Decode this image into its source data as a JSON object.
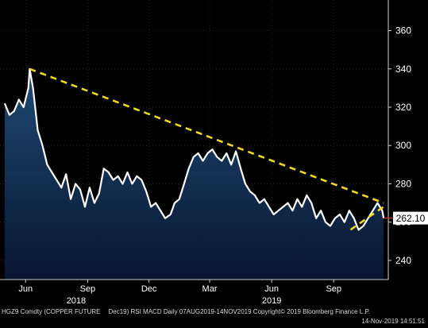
{
  "chart_data": {
    "type": "area",
    "series": [
      {
        "x": [
          "2018-05-01",
          "2018-05-08",
          "2018-05-15",
          "2018-05-22",
          "2018-05-29",
          "2018-06-05",
          "2018-06-07",
          "2018-06-12",
          "2018-06-19",
          "2018-06-26",
          "2018-07-03",
          "2018-07-10",
          "2018-07-17",
          "2018-07-24",
          "2018-07-31",
          "2018-08-07",
          "2018-08-14",
          "2018-08-21",
          "2018-08-28",
          "2018-09-04",
          "2018-09-11",
          "2018-09-18",
          "2018-09-25",
          "2018-10-02",
          "2018-10-09",
          "2018-10-16",
          "2018-10-23",
          "2018-10-30",
          "2018-11-06",
          "2018-11-13",
          "2018-11-20",
          "2018-11-27",
          "2018-12-04",
          "2018-12-11",
          "2018-12-18",
          "2018-12-25",
          "2019-01-02",
          "2019-01-08",
          "2019-01-15",
          "2019-01-22",
          "2019-01-29",
          "2019-02-05",
          "2019-02-12",
          "2019-02-19",
          "2019-02-26",
          "2019-03-05",
          "2019-03-12",
          "2019-03-19",
          "2019-03-26",
          "2019-04-02",
          "2019-04-09",
          "2019-04-16",
          "2019-04-23",
          "2019-04-30",
          "2019-05-07",
          "2019-05-14",
          "2019-05-21",
          "2019-05-28",
          "2019-06-04",
          "2019-06-11",
          "2019-06-18",
          "2019-06-25",
          "2019-07-02",
          "2019-07-09",
          "2019-07-16",
          "2019-07-23",
          "2019-07-30",
          "2019-08-06",
          "2019-08-13",
          "2019-08-20",
          "2019-08-27",
          "2019-09-03",
          "2019-09-10",
          "2019-09-17",
          "2019-09-24",
          "2019-10-01",
          "2019-10-08",
          "2019-10-15",
          "2019-10-22",
          "2019-10-29",
          "2019-11-05",
          "2019-11-12",
          "2019-11-14"
        ],
        "values": [
          322,
          316,
          318,
          324,
          320,
          330,
          340,
          330,
          308,
          300,
          290,
          286,
          282,
          278,
          285,
          272,
          280,
          277,
          268,
          278,
          270,
          275,
          288,
          286,
          282,
          284,
          280,
          286,
          280,
          284,
          282,
          276,
          268,
          270,
          266,
          262,
          264,
          270,
          272,
          280,
          288,
          294,
          296,
          292,
          296,
          298,
          294,
          292,
          296,
          290,
          297,
          288,
          280,
          276,
          274,
          270,
          272,
          268,
          264,
          266,
          268,
          270,
          266,
          272,
          268,
          274,
          270,
          262,
          266,
          260,
          258,
          262,
          264,
          260,
          266,
          262,
          256,
          258,
          262,
          266,
          270,
          266,
          262
        ]
      }
    ],
    "trendlines": [
      {
        "x": [
          "2018-06-07",
          "2019-11-14"
        ],
        "y": [
          340,
          270
        ]
      },
      {
        "x": [
          "2019-09-26",
          "2019-11-14"
        ],
        "y": [
          256,
          268
        ]
      }
    ],
    "last_value": 262.1,
    "last_value_label": "262.10",
    "ylim": [
      230,
      376
    ],
    "yticks": [
      240,
      260,
      280,
      300,
      320,
      340,
      360
    ],
    "ytick_labels": [
      "240",
      "260",
      "280",
      "300",
      "320",
      "340",
      "360"
    ],
    "xlim": [
      "2018-04-24",
      "2019-11-21"
    ],
    "xticks": [
      {
        "date": "2018-06-01",
        "label": "Jun"
      },
      {
        "date": "2018-09-01",
        "label": "Sep"
      },
      {
        "date": "2018-12-01",
        "label": "Dec"
      },
      {
        "date": "2019-03-01",
        "label": "Mar"
      },
      {
        "date": "2019-06-01",
        "label": "Jun"
      },
      {
        "date": "2019-09-01",
        "label": "Sep"
      }
    ],
    "year_labels": [
      {
        "date": "2018-08-15",
        "label": "2018"
      },
      {
        "date": "2019-06-01",
        "label": "2019"
      }
    ],
    "colors": {
      "background": "#000000",
      "line": "#ffffff",
      "area_top": "#1f4a73",
      "area_bottom": "#081530",
      "trendline": "#f0d81c",
      "last_value_box": "#ffffff",
      "last_value_marker": "#e03a2a",
      "grid": "#3a3a3a"
    }
  },
  "footer": {
    "left_a": "HGZ9 Comdty (COPPER FUTURE",
    "left_b": "Dec19) RSI MACD",
    "left_c": "Daily 07AUG2019-14NOV2019",
    "copyright": "Copyright© 2019 Bloomberg Finance L.P.",
    "timestamp": "14-Nov-2019 14:51:51"
  }
}
